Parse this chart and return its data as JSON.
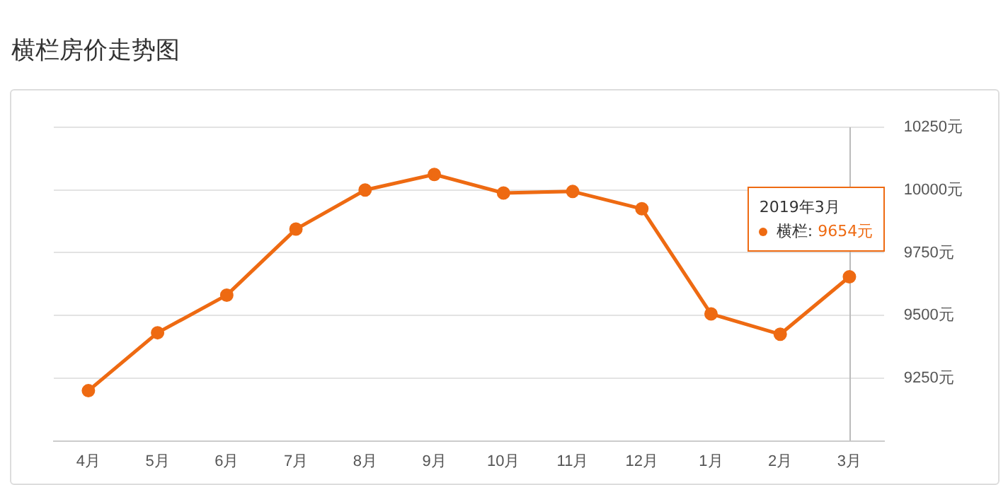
{
  "chart_data": {
    "type": "line",
    "title": "横栏房价走势图",
    "categories": [
      "4月",
      "5月",
      "6月",
      "7月",
      "8月",
      "9月",
      "10月",
      "11月",
      "12月",
      "1月",
      "2月",
      "3月"
    ],
    "series": [
      {
        "name": "横栏:",
        "color": "#ee6a12",
        "values": [
          9200,
          9431,
          9581,
          9844,
          10000,
          10062,
          9988,
          9994,
          9925,
          9506,
          9425,
          9654
        ],
        "value_labels": [
          null,
          null,
          null,
          null,
          null,
          null,
          null,
          null,
          null,
          null,
          null,
          "9654元"
        ]
      }
    ],
    "ylim": [
      9000,
      10250
    ],
    "yticks": [
      {
        "value": 9000,
        "label": null
      },
      {
        "value": 9250,
        "label": "9250元"
      },
      {
        "value": 9500,
        "label": "9500元"
      },
      {
        "value": 9750,
        "label": "9750元"
      },
      {
        "value": 10000,
        "label": "10000元"
      },
      {
        "value": 10250,
        "label": "10250元"
      }
    ],
    "grid": "y",
    "marker": "circle",
    "line_style": "solid",
    "legend": "top right",
    "ref_lines": [
      {
        "axis": "x",
        "value": "3月",
        "color": "#bbbbbb"
      }
    ],
    "annotations": [
      "2019年3月"
    ]
  }
}
